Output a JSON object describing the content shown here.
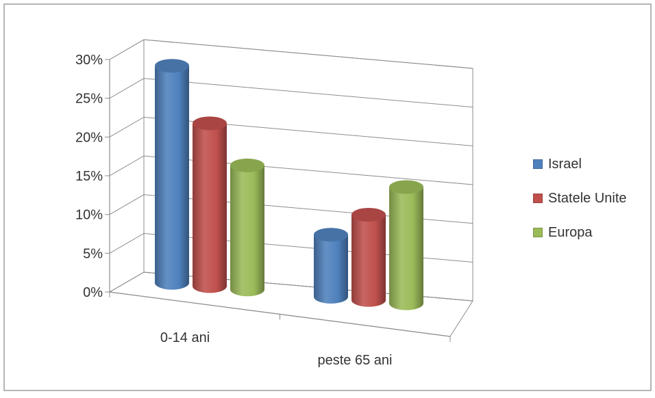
{
  "chart_data": {
    "type": "bar",
    "categories": [
      "0-14 ani",
      "peste 65 ani"
    ],
    "series": [
      {
        "name": "Israel",
        "color": "#4f81bd",
        "values": [
          28,
          8
        ]
      },
      {
        "name": "Statele Unite",
        "color": "#c0504d",
        "values": [
          21,
          11
        ]
      },
      {
        "name": "Europa",
        "color": "#9bbb59",
        "values": [
          16,
          15
        ]
      }
    ],
    "y_ticks": [
      "0%",
      "5%",
      "10%",
      "15%",
      "20%",
      "25%",
      "30%"
    ],
    "ylim": [
      0,
      30
    ],
    "grid": true,
    "legend_position": "right",
    "style": "3d-cylinder"
  }
}
